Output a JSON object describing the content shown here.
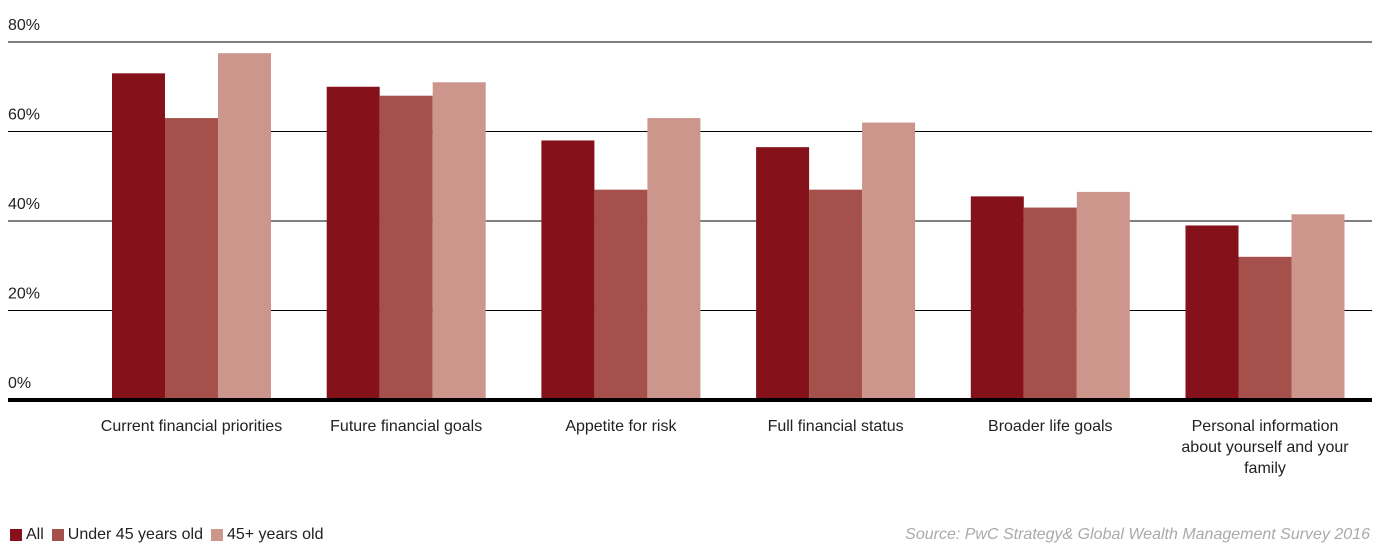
{
  "chart_data": {
    "type": "bar",
    "categories": [
      "Current financial priorities",
      "Future financial goals",
      "Appetite for risk",
      "Full financial status",
      "Broader life goals",
      "Personal information about yourself and your family"
    ],
    "series": [
      {
        "name": "All",
        "color": "#85111a",
        "values": [
          73,
          70,
          58,
          56.5,
          45.5,
          39
        ]
      },
      {
        "name": "Under 45 years old",
        "color": "#a5504a",
        "values": [
          63,
          68,
          47,
          47,
          43,
          32
        ]
      },
      {
        "name": "45+ years old",
        "color": "#cc968c",
        "values": [
          77.5,
          71,
          63,
          62,
          46.5,
          41.5
        ]
      }
    ],
    "ylim": [
      0,
      80
    ],
    "yticks": [
      {
        "value": 0,
        "label": "0%"
      },
      {
        "value": 20,
        "label": "20%"
      },
      {
        "value": 40,
        "label": "40%"
      },
      {
        "value": 60,
        "label": "60%"
      },
      {
        "value": 80,
        "label": "80%"
      }
    ],
    "grid": true,
    "source": "Source: PwC Strategy& Global Wealth Management Survey 2016"
  }
}
